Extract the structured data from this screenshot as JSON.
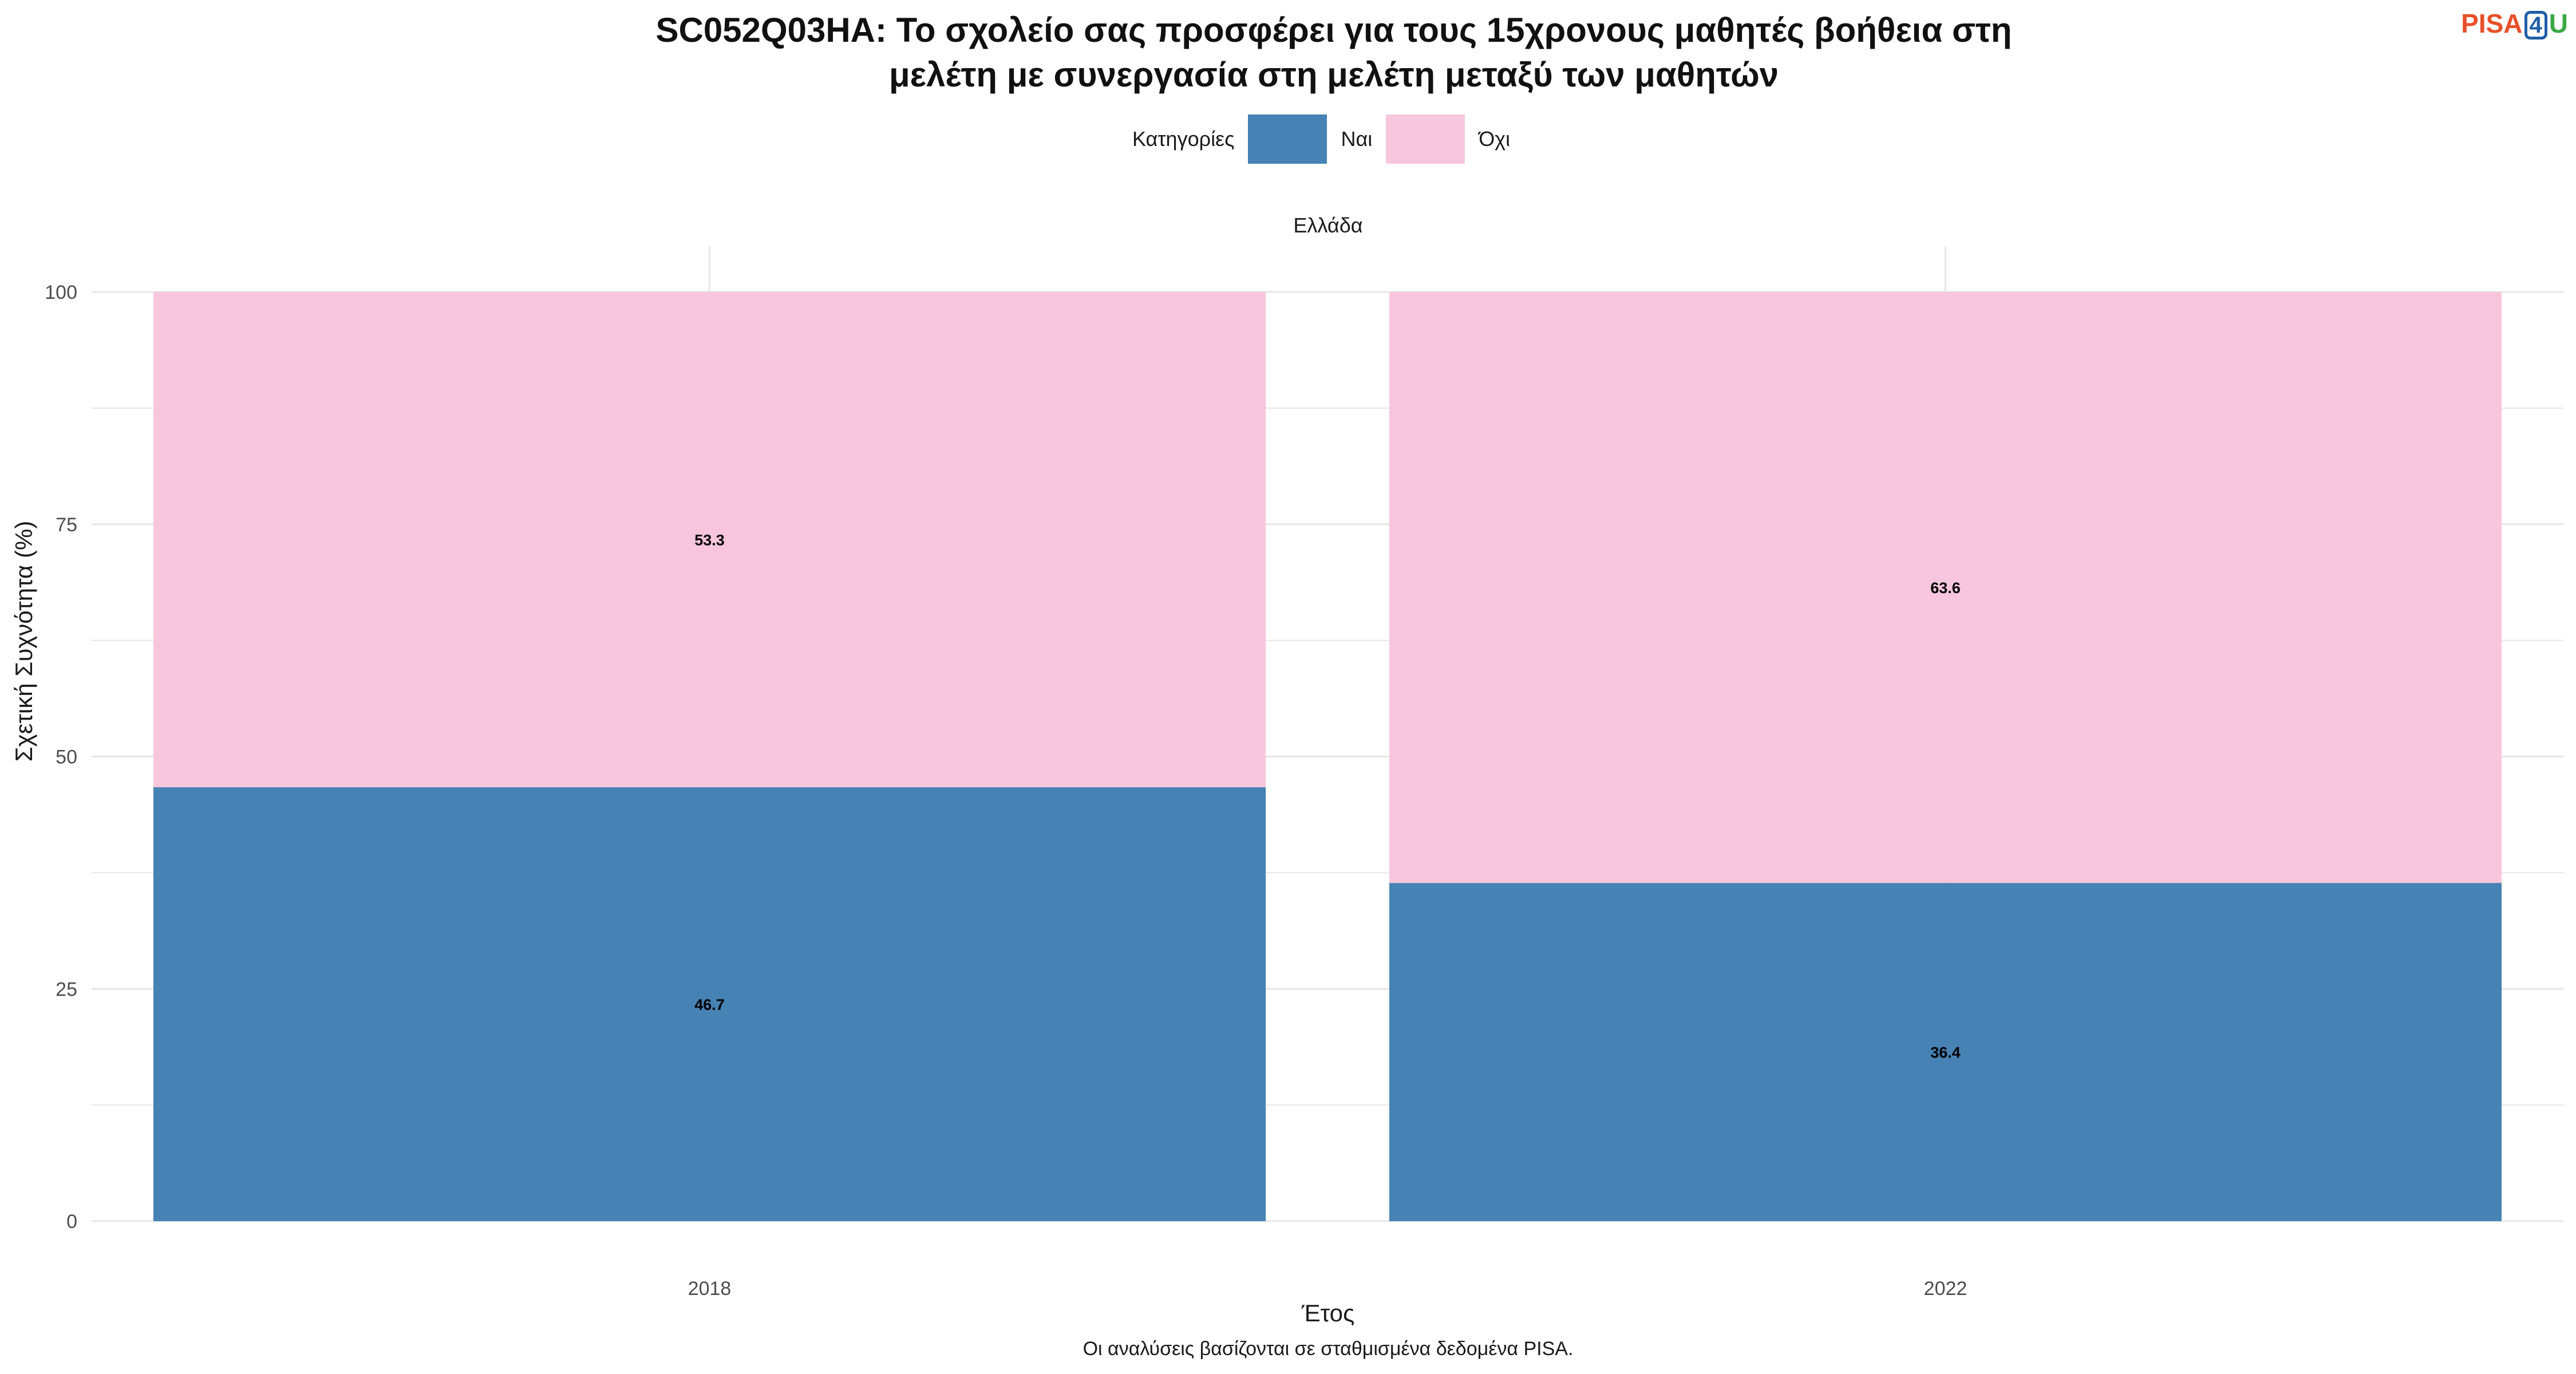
{
  "title_lines": [
    "SC052Q03HA: Το σχολείο σας προσφέρει για τους 15χρονους μαθητές βοήθεια στη",
    "μελέτη με συνεργασία στη μελέτη μεταξύ των μαθητών"
  ],
  "logo": {
    "p": "PISA",
    "four": "4",
    "u": "U"
  },
  "legend": {
    "title": "Κατηγορίες",
    "items": [
      "Ναι",
      "Όχι"
    ]
  },
  "facet": "Ελλάδα",
  "caption": "Οι αναλύσεις βασίζονται σε σταθμισμένα δεδομένα PISA.",
  "colors": {
    "yes": "#4682b4",
    "no": "#f7c6dc",
    "grid": "#e6e6e6"
  },
  "chart_data": {
    "type": "bar",
    "stacked": true,
    "categories": [
      "2018",
      "2022"
    ],
    "series": [
      {
        "name": "Ναι",
        "values": [
          46.7,
          36.4
        ]
      },
      {
        "name": "Όχι",
        "values": [
          53.3,
          63.6
        ]
      }
    ],
    "xlabel": "Έτος",
    "ylabel": "Σχετική Συχνότητα (%)",
    "ylim": [
      0,
      100
    ],
    "yticks": [
      "0",
      "25",
      "50",
      "75",
      "100"
    ],
    "grid": true,
    "legend_position": "top"
  }
}
